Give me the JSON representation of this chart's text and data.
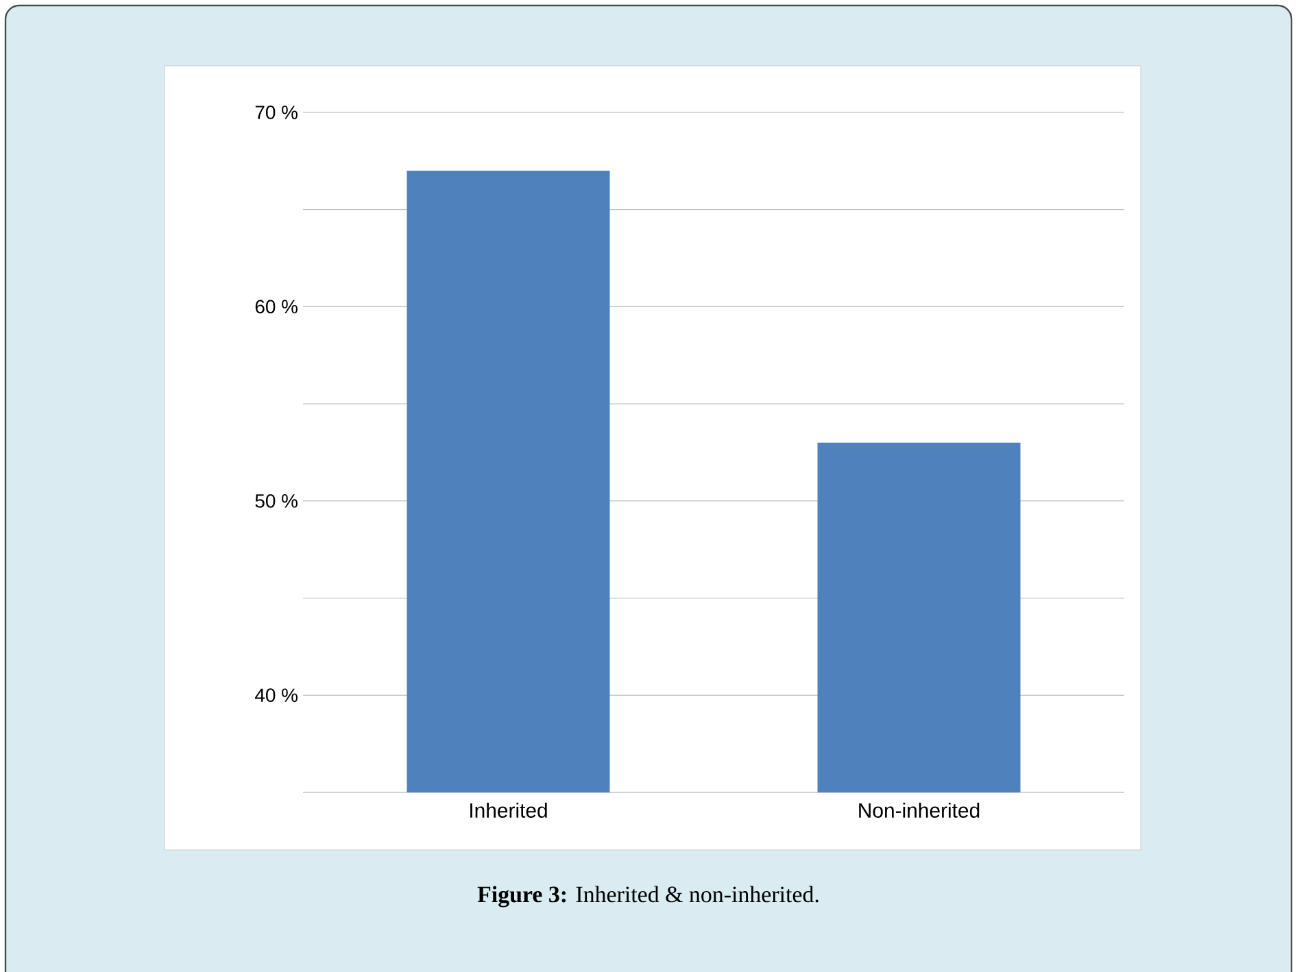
{
  "chart_data": {
    "type": "bar",
    "categories": [
      "Inherited",
      "Non-inherited"
    ],
    "values": [
      67,
      53
    ],
    "color": "#4f81bd",
    "ylim": [
      35,
      70
    ],
    "yticks": [
      {
        "value": 40,
        "label": "40 %"
      },
      {
        "value": 45,
        "label": null
      },
      {
        "value": 50,
        "label": "50 %"
      },
      {
        "value": 55,
        "label": null
      },
      {
        "value": 60,
        "label": "60 %"
      },
      {
        "value": 65,
        "label": null
      },
      {
        "value": 70,
        "label": "70 %"
      }
    ],
    "grid": "y",
    "annotations": [
      "**Figure 3:** Inherited & non-inherited."
    ]
  }
}
